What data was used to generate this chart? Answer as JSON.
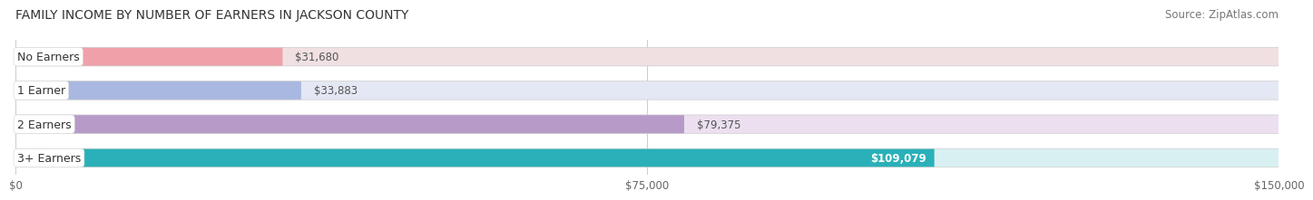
{
  "title": "FAMILY INCOME BY NUMBER OF EARNERS IN JACKSON COUNTY",
  "source": "Source: ZipAtlas.com",
  "categories": [
    "No Earners",
    "1 Earner",
    "2 Earners",
    "3+ Earners"
  ],
  "values": [
    31680,
    33883,
    79375,
    109079
  ],
  "labels": [
    "$31,680",
    "$33,883",
    "$79,375",
    "$109,079"
  ],
  "bar_colors": [
    "#f0a0a8",
    "#a8b8e0",
    "#b89ac8",
    "#2ab0b8"
  ],
  "bar_bg_colors": [
    "#f0e0e2",
    "#e4e8f4",
    "#ece0f0",
    "#d8f0f2"
  ],
  "label_colors": [
    "#666666",
    "#666666",
    "#666666",
    "#ffffff"
  ],
  "xmax": 150000,
  "xticks": [
    0,
    75000,
    150000
  ],
  "xticklabels": [
    "$0",
    "$75,000",
    "$150,000"
  ],
  "title_fontsize": 10,
  "source_fontsize": 8.5,
  "label_fontsize": 8.5,
  "cat_fontsize": 9,
  "tick_fontsize": 8.5,
  "bg_color": "#ffffff",
  "plot_bg_color": "#ffffff"
}
